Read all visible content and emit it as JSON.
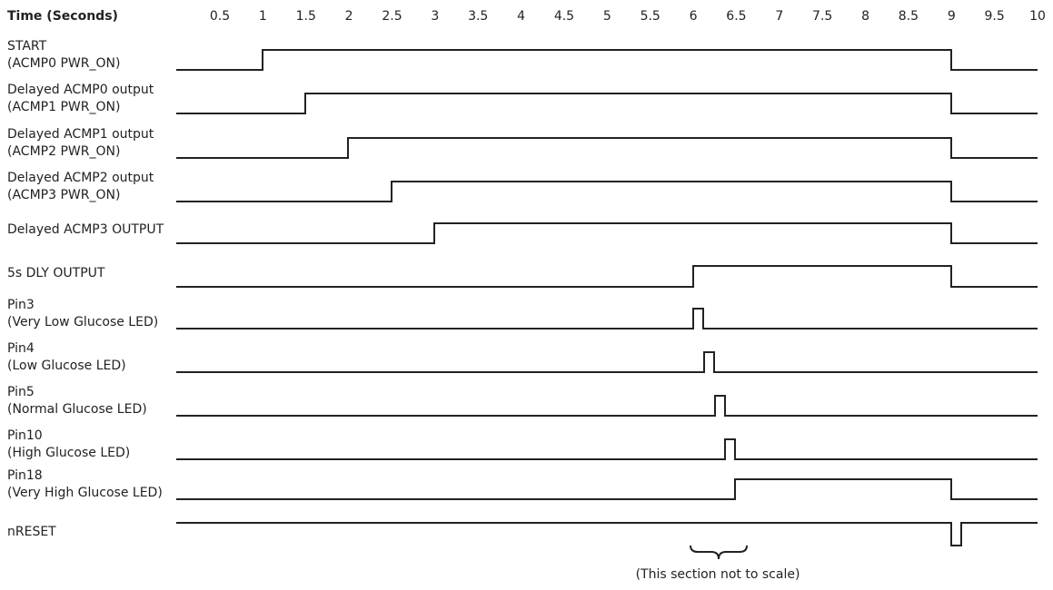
{
  "header": {
    "title": "Time (Seconds)",
    "ticks": [
      "0.5",
      "1",
      "1.5",
      "2",
      "2.5",
      "3",
      "3.5",
      "4",
      "4.5",
      "5",
      "5.5",
      "6",
      "6.5",
      "7",
      "7.5",
      "8",
      "8.5",
      "9",
      "9.5",
      "10"
    ]
  },
  "signals": [
    {
      "lines": [
        "START",
        "(ACMP0 PWR_ON)"
      ]
    },
    {
      "lines": [
        "Delayed ACMP0 output",
        "(ACMP1 PWR_ON)"
      ]
    },
    {
      "lines": [
        "Delayed ACMP1 output",
        "(ACMP2 PWR_ON)"
      ]
    },
    {
      "lines": [
        "Delayed ACMP2 output",
        "(ACMP3 PWR_ON)"
      ]
    },
    {
      "lines": [
        "Delayed ACMP3 OUTPUT"
      ]
    },
    {
      "lines": [
        "5s DLY OUTPUT"
      ]
    },
    {
      "lines": [
        "Pin3",
        "(Very Low Glucose LED)"
      ]
    },
    {
      "lines": [
        "Pin4",
        "(Low Glucose LED)"
      ]
    },
    {
      "lines": [
        "Pin5",
        "(Normal Glucose LED)"
      ]
    },
    {
      "lines": [
        "Pin10",
        "(High Glucose LED)"
      ]
    },
    {
      "lines": [
        "Pin18",
        "(Very High Glucose LED)"
      ]
    },
    {
      "lines": [
        "nRESET"
      ]
    }
  ],
  "note": "(This section not to scale)"
}
